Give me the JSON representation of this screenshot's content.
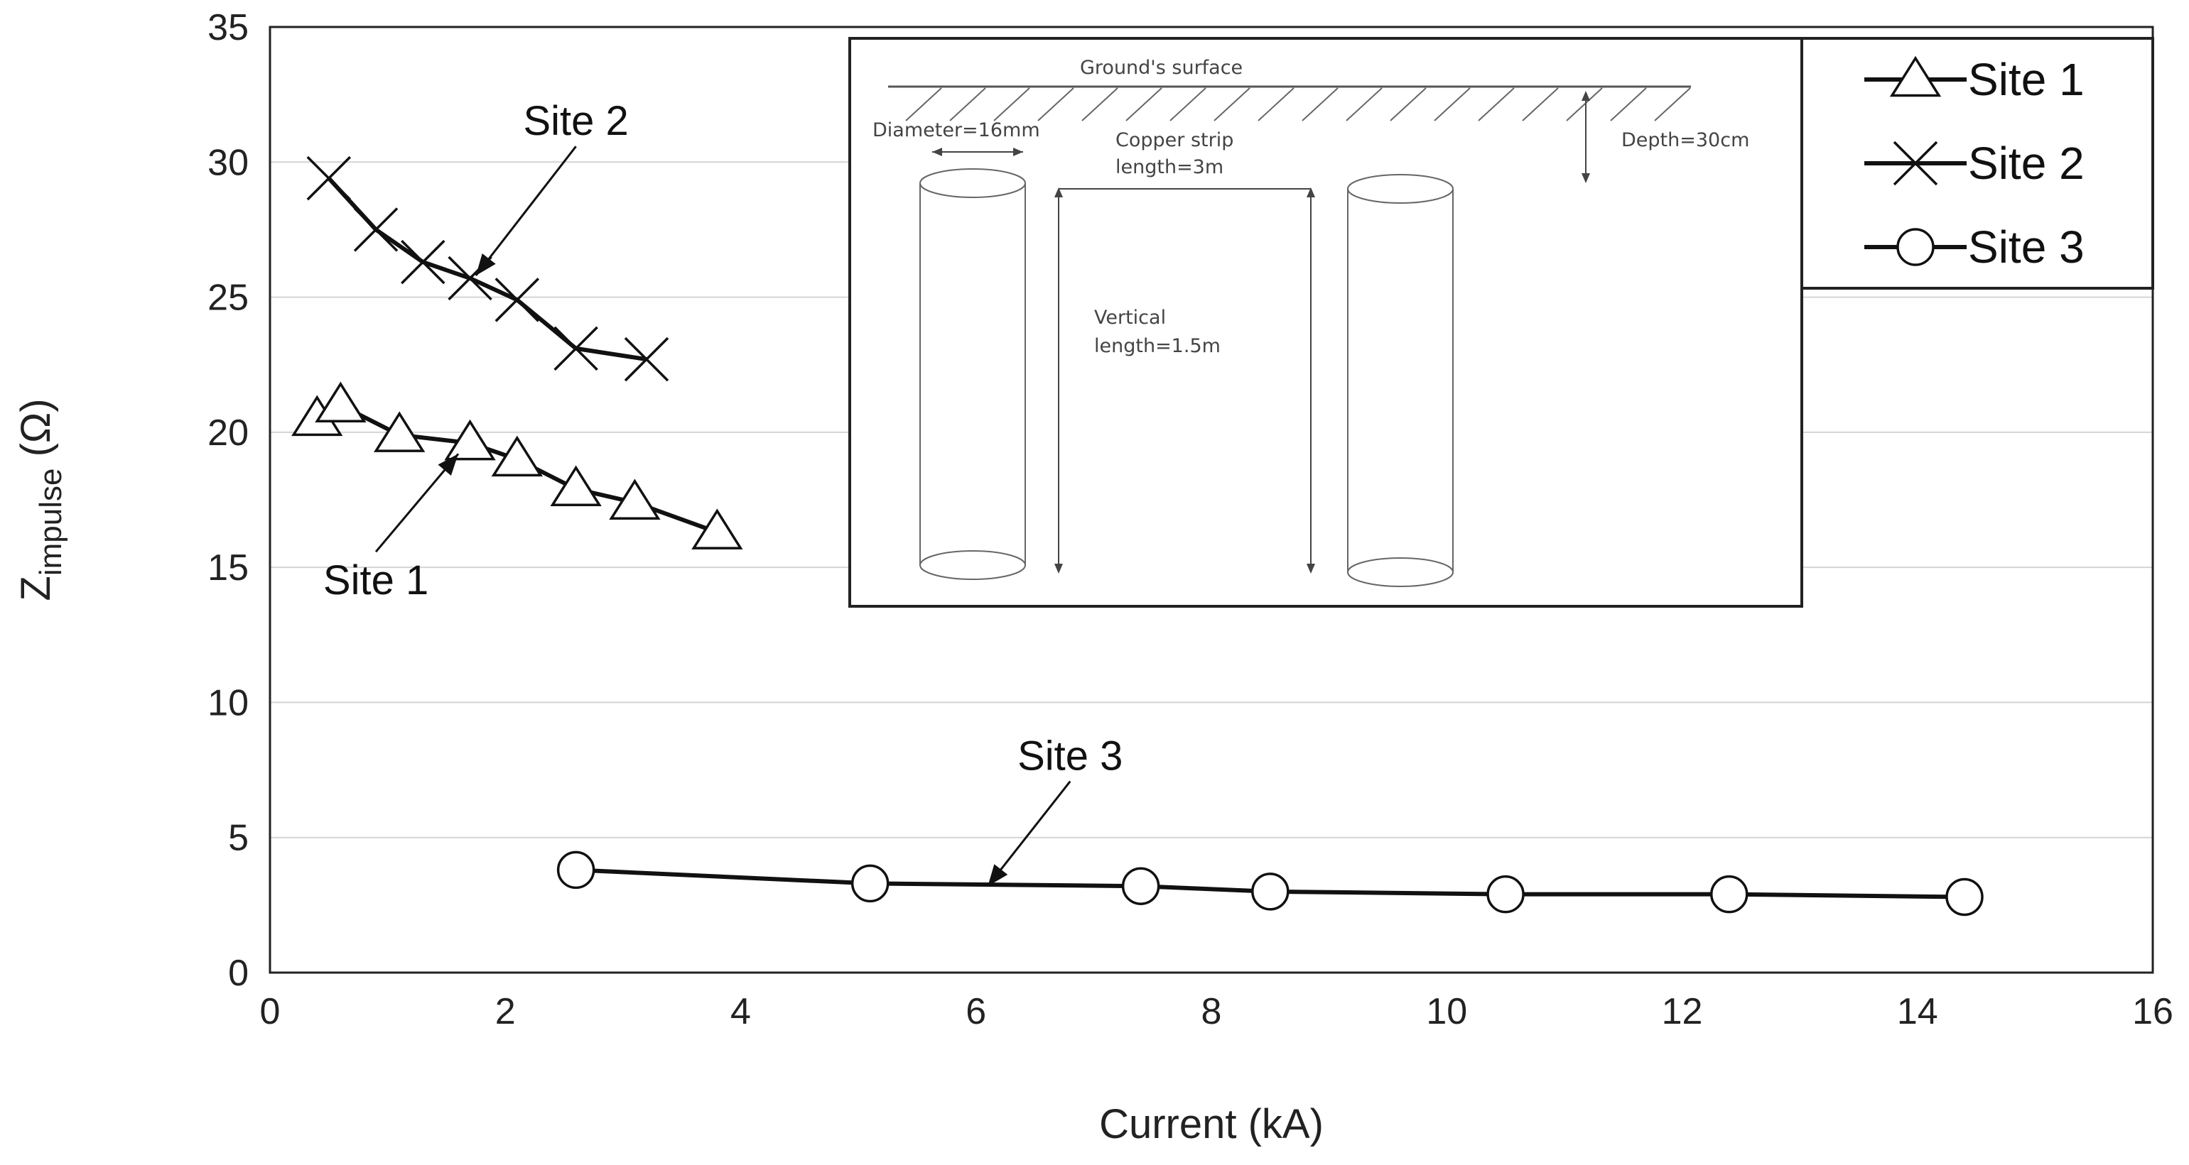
{
  "chart_data": {
    "type": "line",
    "xlabel": "Current (kA)",
    "ylabel_main": "Z",
    "ylabel_sub": "impulse",
    "ylabel_unit": " (Ω)",
    "xlim": [
      0,
      16
    ],
    "ylim": [
      0,
      35
    ],
    "xticks": [
      "0",
      "2",
      "4",
      "6",
      "8",
      "10",
      "12",
      "14",
      "16"
    ],
    "yticks": [
      "0",
      "5",
      "10",
      "15",
      "20",
      "25",
      "30",
      "35"
    ],
    "grid": "horizontal",
    "legend_position": "top-right",
    "series": [
      {
        "name": "Site 1",
        "marker": "triangle",
        "x": [
          0.4,
          0.6,
          1.1,
          1.7,
          2.1,
          2.6,
          3.1,
          3.8
        ],
        "y": [
          20.5,
          21.0,
          19.9,
          19.6,
          19.0,
          17.9,
          17.4,
          16.3
        ]
      },
      {
        "name": "Site 2",
        "marker": "cross",
        "x": [
          0.5,
          0.9,
          1.3,
          1.7,
          2.1,
          2.6,
          3.2
        ],
        "y": [
          29.4,
          27.5,
          26.3,
          25.7,
          24.9,
          23.1,
          22.7
        ]
      },
      {
        "name": "Site 3",
        "marker": "circle",
        "x": [
          2.6,
          5.1,
          7.4,
          8.5,
          10.5,
          12.4,
          14.4
        ],
        "y": [
          3.8,
          3.3,
          3.2,
          3.0,
          2.9,
          2.9,
          2.8
        ]
      }
    ],
    "annotations": [
      {
        "text": "Site 2",
        "label_x": 2.6,
        "label_y": 31.0,
        "arrow_to_x": 1.75,
        "arrow_to_y": 25.8
      },
      {
        "text": "Site 1",
        "label_x": 0.9,
        "label_y": 14.0,
        "arrow_to_x": 1.6,
        "arrow_to_y": 19.2
      },
      {
        "text": "Site 3",
        "label_x": 6.8,
        "label_y": 7.5,
        "arrow_to_x": 6.1,
        "arrow_to_y": 3.2
      }
    ]
  },
  "inset": {
    "ground_label": "Ground's surface",
    "diameter_label": "Diameter=16mm",
    "strip_label_1": "Copper strip",
    "strip_label_2": "length=3m",
    "depth_label": "Depth=30cm",
    "vertical_label_1": "Vertical",
    "vertical_label_2": "length=1.5m"
  }
}
